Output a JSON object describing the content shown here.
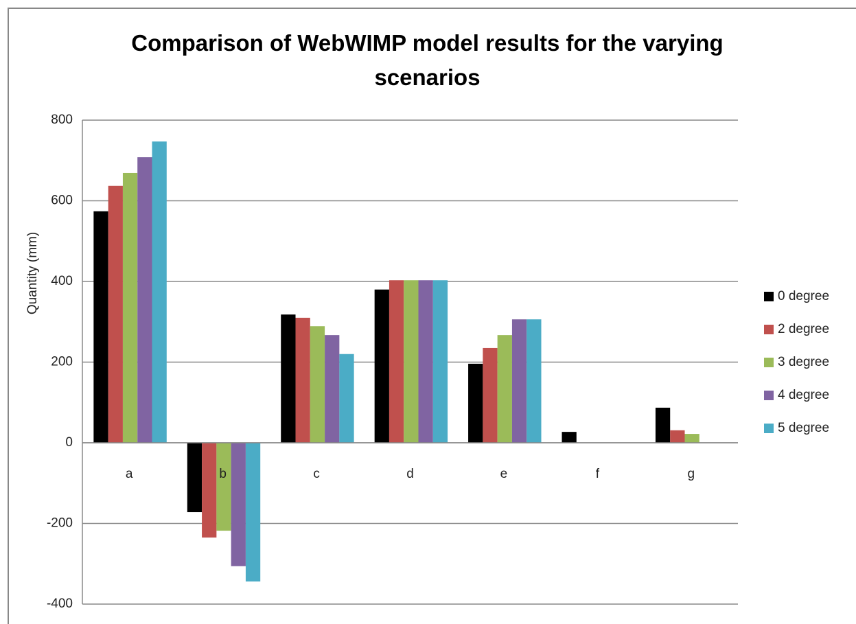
{
  "chart_data": {
    "type": "bar",
    "title": "Comparison of WebWIMP model results for the varying scenarios",
    "y_label": "Quantity (mm)",
    "categories": [
      "a",
      "b",
      "c",
      "d",
      "e",
      "f",
      "g"
    ],
    "series": [
      {
        "name": "0 degree",
        "color": "#000000",
        "values": [
          574,
          -172,
          318,
          380,
          196,
          27,
          87
        ]
      },
      {
        "name": "2 degree",
        "color": "#c0504d",
        "values": [
          637,
          -235,
          310,
          403,
          235,
          0,
          31
        ]
      },
      {
        "name": "3 degree",
        "color": "#9bbb59",
        "values": [
          669,
          -218,
          289,
          403,
          267,
          0,
          22
        ]
      },
      {
        "name": "4 degree",
        "color": "#8064a2",
        "values": [
          708,
          -306,
          267,
          403,
          306,
          0,
          0
        ]
      },
      {
        "name": "5 degree",
        "color": "#4bacc6",
        "values": [
          747,
          -344,
          220,
          403,
          306,
          0,
          0
        ]
      }
    ],
    "ylim": [
      -400,
      800
    ],
    "yticks": [
      -400,
      -200,
      0,
      200,
      400,
      600,
      800
    ],
    "grid": true,
    "legend": "right"
  }
}
